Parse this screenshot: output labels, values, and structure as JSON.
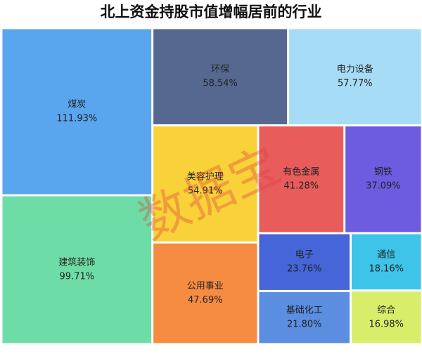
{
  "chart_data": {
    "type": "treemap",
    "title": "北上资金持股市值增幅居前的行业",
    "watermark": "数据宝",
    "categories": [
      "煤炭",
      "建筑装饰",
      "环保",
      "电力设备",
      "美容护理",
      "公用事业",
      "有色金属",
      "钢铁",
      "电子",
      "基础化工",
      "通信",
      "综合"
    ],
    "values": [
      111.93,
      99.71,
      58.54,
      57.77,
      54.91,
      47.69,
      41.28,
      37.09,
      23.76,
      21.8,
      18.16,
      16.98
    ],
    "value_labels": [
      "111.93%",
      "99.71%",
      "58.54%",
      "57.77%",
      "54.91%",
      "47.69%",
      "41.28%",
      "37.09%",
      "23.76%",
      "21.80%",
      "18.16%",
      "16.98%"
    ],
    "colors": [
      "#5aa6ee",
      "#6edca6",
      "#56688f",
      "#a6dcf6",
      "#f9d23a",
      "#f58c42",
      "#e85c5c",
      "#6d5ce0",
      "#4565d8",
      "#5b8ee0",
      "#3ec4e8",
      "#d8ee6a"
    ]
  }
}
